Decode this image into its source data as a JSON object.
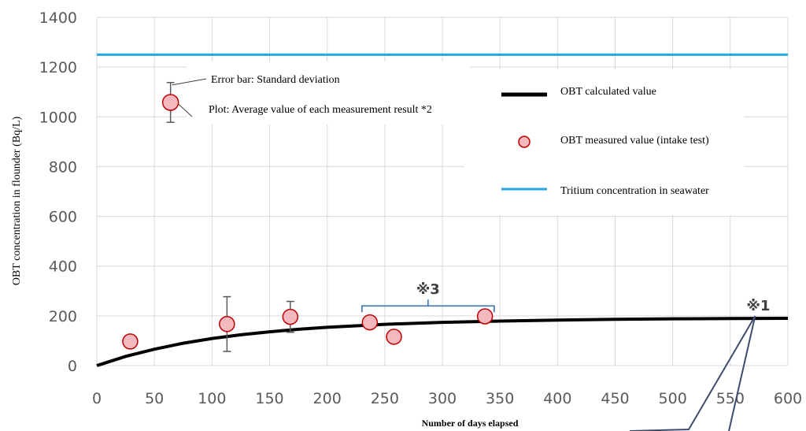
{
  "chart_data": {
    "type": "line",
    "title": "",
    "xlabel": "Number of days elapsed",
    "ylabel": "OBT concentration in flounder (Bq/L)",
    "xlim": [
      0,
      600
    ],
    "ylim": [
      0,
      1400
    ],
    "x_ticks": [
      0,
      50,
      100,
      150,
      200,
      250,
      300,
      350,
      400,
      450,
      500,
      550,
      600
    ],
    "y_ticks": [
      0,
      200,
      400,
      600,
      800,
      1000,
      1200,
      1400
    ],
    "grid": true,
    "legend_position": "top-right",
    "series": [
      {
        "name": "OBT calculated value",
        "kind": "line",
        "color": "#000000",
        "x": [
          0,
          25,
          50,
          75,
          100,
          125,
          150,
          175,
          200,
          250,
          300,
          350,
          400,
          450,
          500,
          550,
          600
        ],
        "y": [
          0,
          37,
          66,
          90,
          109,
          124,
          136,
          146,
          154,
          166,
          174,
          179,
          183,
          186,
          188,
          189,
          190
        ]
      },
      {
        "name": "OBT measured value (intake test)",
        "kind": "scatter",
        "color": "#f4b8bf",
        "x": [
          29,
          113,
          168,
          237,
          258,
          337
        ],
        "y": [
          97,
          167,
          196,
          174,
          116,
          198
        ],
        "error": [
          null,
          110,
          62,
          null,
          null,
          null
        ]
      },
      {
        "name": "Tritium concentration in seawater",
        "kind": "hline",
        "color": "#25a9df",
        "y": 1250
      }
    ],
    "error_legend": {
      "sample": {
        "x": 64,
        "y": 1058,
        "error": 80
      },
      "error_bar_label": "Error bar: Standard deviation",
      "plot_label": "Plot: Average value of each measurement result *2"
    },
    "annotations": [
      {
        "text": "※3",
        "bracket_x": [
          237,
          345
        ],
        "y": 240
      },
      {
        "text": "※1",
        "point_x": 575,
        "point_y": 190
      }
    ]
  }
}
